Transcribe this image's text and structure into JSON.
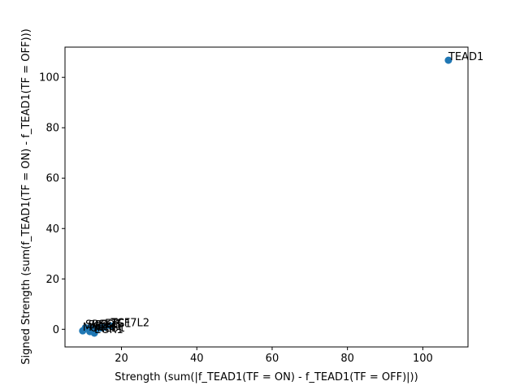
{
  "chart_data": {
    "type": "scatter",
    "title": "",
    "xlabel": "Strength (sum(|f_TEAD1(TF = ON) - f_TEAD1(TF = OFF)|))",
    "ylabel": "Signed Strength (sum(f_TEAD1(TF = ON) - f_TEAD1(TF = OFF)))",
    "xlim": [
      5,
      112
    ],
    "ylim": [
      -7,
      112
    ],
    "xticks": [
      20,
      40,
      60,
      80,
      100
    ],
    "yticks": [
      0,
      20,
      40,
      60,
      80,
      100
    ],
    "grid": false,
    "color": "#1f77b4",
    "points": [
      {
        "label": "TEAD1",
        "x": 106.8,
        "y": 106.8
      },
      {
        "label": "TCF7L2",
        "x": 17.2,
        "y": 1.3
      },
      {
        "label": "EGR1",
        "x": 12.8,
        "y": -1.5
      },
      {
        "label": "SP1",
        "x": 10.4,
        "y": 0.6
      },
      {
        "label": "SP2",
        "x": 11.2,
        "y": 0.4
      },
      {
        "label": "KLF4",
        "x": 12.0,
        "y": 0.2
      },
      {
        "label": "ELK1",
        "x": 13.2,
        "y": -0.2
      },
      {
        "label": "FOS",
        "x": 14.4,
        "y": 0.5
      },
      {
        "label": "ETS1",
        "x": 15.6,
        "y": 0.9
      },
      {
        "label": "MYC",
        "x": 9.7,
        "y": -0.6
      },
      {
        "label": "CREB1",
        "x": 11.6,
        "y": -0.9
      }
    ]
  }
}
